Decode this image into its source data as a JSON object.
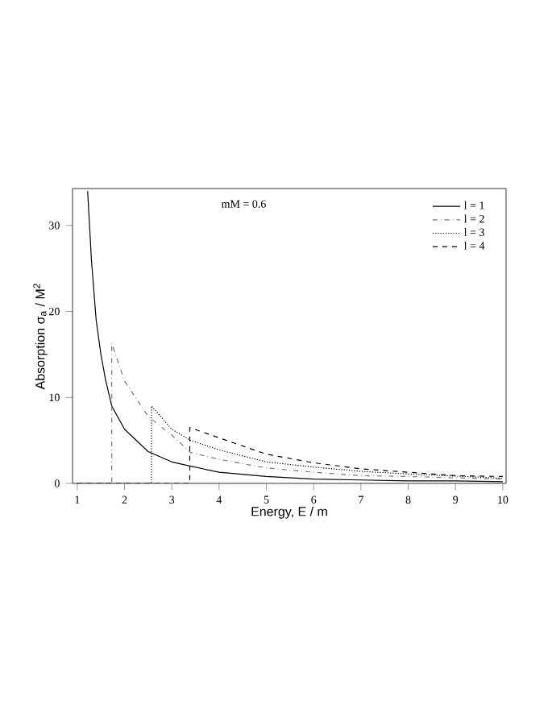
{
  "chart_data": {
    "type": "line",
    "xlabel": "Energy, E / m",
    "ylabel": "Absorption σ$_{a}$ / M$^{2}$",
    "annotations": [
      "mM = 0.6"
    ],
    "xlim": [
      0.9,
      10.07
    ],
    "ylim": [
      0,
      34.3
    ],
    "xticks": [
      1,
      2,
      3,
      4,
      5,
      6,
      7,
      8,
      9,
      10
    ],
    "yticks": [
      0,
      10,
      20,
      30
    ],
    "legend": "top right",
    "grid": false,
    "series": [
      {
        "name": "l = 1",
        "color": "#000000",
        "line_style": "solid",
        "x": [
          1.22,
          1.3,
          1.4,
          1.5,
          1.6,
          1.73,
          2,
          2.5,
          3,
          3.4,
          4,
          5,
          6,
          7,
          8,
          9,
          10
        ],
        "values": [
          34,
          26,
          19,
          15,
          12,
          9,
          6.3,
          3.7,
          2.5,
          2,
          1.3,
          0.8,
          0.5,
          0.4,
          0.3,
          0.3,
          0.2
        ]
      },
      {
        "name": "l = 2",
        "color": "#777777",
        "line_style": "dashdot",
        "x": [
          1,
          1.73,
          1.73,
          2,
          2.5,
          3,
          3.4,
          4,
          5,
          6,
          7,
          8,
          10
        ],
        "values": [
          0,
          0,
          16.3,
          11.9,
          7.8,
          5.6,
          3.6,
          2.8,
          1.8,
          1.3,
          0.9,
          0.8,
          0.5
        ]
      },
      {
        "name": "l = 3",
        "color": "#000000",
        "line_style": "dotted",
        "x": [
          1,
          2.57,
          2.57,
          3,
          3.4,
          4,
          5,
          6,
          7,
          8,
          10
        ],
        "values": [
          0,
          0,
          9,
          6.3,
          5,
          3.9,
          2.5,
          1.9,
          1.4,
          1.1,
          0.6
        ]
      },
      {
        "name": "l = 4",
        "color": "#000000",
        "line_style": "dashed",
        "x": [
          1,
          3.38,
          3.38,
          4,
          5,
          6,
          7,
          8,
          9,
          10
        ],
        "values": [
          0,
          0,
          6.5,
          5.3,
          3.4,
          2.4,
          1.7,
          1.3,
          0.9,
          0.8
        ]
      }
    ]
  }
}
